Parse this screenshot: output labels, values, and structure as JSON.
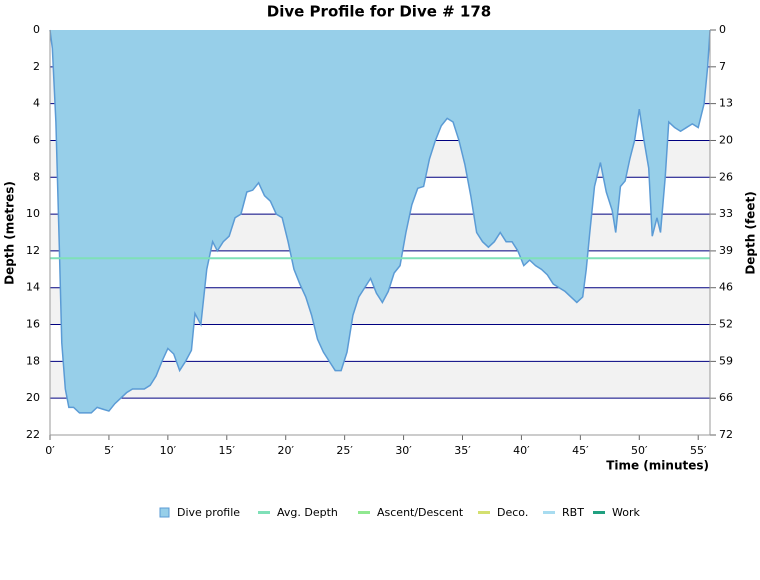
{
  "chart_data": {
    "type": "area",
    "title": "Dive Profile for Dive # 178",
    "x_label": "Time (minutes)",
    "y_label": "Depth (metres)",
    "y2_label": "Depth (feet)",
    "y_inverted": true,
    "grid": true,
    "alternate_bands": true,
    "grid_color": "#000080",
    "band_color": "#f2f2f2",
    "xlim": [
      0,
      56
    ],
    "ylim": [
      0,
      22
    ],
    "y2lim": [
      0,
      72.18
    ],
    "xticks": [
      {
        "value": 0,
        "label": "0′"
      },
      {
        "value": 5,
        "label": "5′"
      },
      {
        "value": 10,
        "label": "10′"
      },
      {
        "value": 15,
        "label": "15′"
      },
      {
        "value": 20,
        "label": "20′"
      },
      {
        "value": 25,
        "label": "25′"
      },
      {
        "value": 30,
        "label": "30′"
      },
      {
        "value": 35,
        "label": "35′"
      },
      {
        "value": 40,
        "label": "40′"
      },
      {
        "value": 45,
        "label": "45′"
      },
      {
        "value": 50,
        "label": "50′"
      },
      {
        "value": 55,
        "label": "55′"
      }
    ],
    "yticks": [
      0,
      2,
      4,
      6,
      8,
      10,
      12,
      14,
      16,
      18,
      20,
      22
    ],
    "y2ticks": [
      0,
      {
        "value": 6.56,
        "label": "7"
      },
      {
        "value": 13.12,
        "label": "13"
      },
      {
        "value": 19.69,
        "label": "20"
      },
      {
        "value": 26.25,
        "label": "26"
      },
      {
        "value": 32.81,
        "label": "33"
      },
      {
        "value": 39.37,
        "label": "39"
      },
      {
        "value": 45.93,
        "label": "46"
      },
      {
        "value": 52.49,
        "label": "52"
      },
      {
        "value": 59.06,
        "label": "59"
      },
      {
        "value": 65.62,
        "label": "66"
      },
      {
        "value": 72.18,
        "label": "72"
      }
    ],
    "x": [
      0,
      0.2,
      0.5,
      0.8,
      1.0,
      1.3,
      1.6,
      2,
      2.5,
      3,
      3.5,
      4,
      4.5,
      5,
      5.5,
      6,
      6.5,
      7,
      7.5,
      8,
      8.5,
      9,
      9.5,
      10,
      10.5,
      11,
      11.5,
      12,
      12.3,
      12.8,
      13.3,
      13.8,
      14.2,
      14.7,
      15.2,
      15.7,
      16.2,
      16.7,
      17.2,
      17.7,
      18.2,
      18.7,
      19.2,
      19.7,
      20.2,
      20.7,
      21.2,
      21.7,
      22.2,
      22.7,
      23.2,
      23.7,
      24.2,
      24.7,
      25.2,
      25.7,
      26.2,
      26.7,
      27.2,
      27.7,
      28.2,
      28.7,
      29.2,
      29.7,
      30.2,
      30.7,
      31.2,
      31.7,
      32.2,
      32.7,
      33.2,
      33.7,
      34.2,
      34.7,
      35.2,
      35.7,
      36.2,
      36.7,
      37.2,
      37.7,
      38.2,
      38.7,
      39.2,
      39.7,
      40.2,
      40.7,
      41.2,
      41.7,
      42.2,
      42.7,
      43.2,
      43.7,
      44.2,
      44.7,
      45.2,
      45.5,
      45.8,
      46.2,
      46.7,
      47.2,
      47.7,
      48.0,
      48.4,
      48.8,
      49.2,
      49.6,
      50,
      50.4,
      50.8,
      51.1,
      51.5,
      51.8,
      52.2,
      52.5,
      53,
      53.5,
      54,
      54.5,
      55,
      55.5,
      55.8,
      56
    ],
    "series": [
      {
        "name": "Dive profile",
        "color": "#97cfe9",
        "line_color": "#5b9bd5",
        "values": [
          0,
          1,
          5,
          12,
          17,
          19.5,
          20.5,
          20.5,
          20.8,
          20.8,
          20.8,
          20.5,
          20.6,
          20.7,
          20.3,
          20,
          19.7,
          19.5,
          19.5,
          19.5,
          19.3,
          18.8,
          18,
          17.3,
          17.6,
          18.5,
          18,
          17.4,
          15.4,
          16,
          13,
          11.5,
          12,
          11.5,
          11.2,
          10.2,
          10,
          8.8,
          8.7,
          8.3,
          9,
          9.3,
          10,
          10.2,
          11.5,
          13,
          13.8,
          14.5,
          15.5,
          16.8,
          17.5,
          18,
          18.5,
          18.5,
          17.5,
          15.5,
          14.5,
          14,
          13.5,
          14.3,
          14.8,
          14.2,
          13.2,
          12.8,
          11,
          9.5,
          8.6,
          8.5,
          7,
          6,
          5.2,
          4.8,
          5,
          6,
          7.3,
          9,
          11,
          11.5,
          11.8,
          11.5,
          11,
          11.5,
          11.5,
          12,
          12.8,
          12.5,
          12.8,
          13,
          13.3,
          13.8,
          14,
          14.2,
          14.5,
          14.8,
          14.5,
          13,
          11,
          8.5,
          7.2,
          8.8,
          9.8,
          11,
          8.5,
          8.2,
          7,
          6,
          4.3,
          6,
          7.5,
          11.2,
          10.2,
          11,
          8,
          5,
          5.3,
          5.5,
          5.3,
          5.1,
          5.3,
          4,
          2,
          0
        ]
      },
      {
        "name": "Avg. Depth",
        "color": "#7fe0b8",
        "value": 12.4
      },
      {
        "name": "Ascent/Descent",
        "color": "#90e890"
      },
      {
        "name": "Deco.",
        "color": "#d4e070"
      },
      {
        "name": "RBT",
        "color": "#a8dcf0"
      },
      {
        "name": "Work",
        "color": "#20a080"
      }
    ]
  }
}
